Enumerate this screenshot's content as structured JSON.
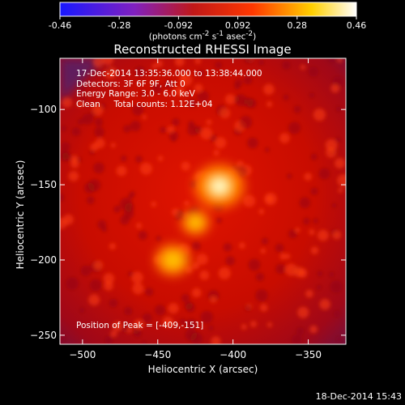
{
  "colorbar": {
    "ticks": [
      "-0.46",
      "-0.28",
      "-0.092",
      "0.092",
      "0.28",
      "0.46"
    ],
    "unit_html": "(photons cm<sup>-2</sup> s<sup>-1</sup> asec<sup>-2</sup>)"
  },
  "title": "Reconstructed RHESSI Image",
  "info": {
    "line1": "17-Dec-2014 13:35:36.000 to 13:38:44.000",
    "line2": "Detectors: 3F 6F 9F, Att 0",
    "line3": "Energy Range: 3.0 - 6.0 keV",
    "line4": "Clean     Total counts: 1.12E+04",
    "peak": "Position of Peak = [-409,-151]"
  },
  "footer_timestamp": "18-Dec-2014 15:43",
  "chart_data": {
    "type": "heatmap",
    "title": "Reconstructed RHESSI Image",
    "xlabel": "Heliocentric X (arcsec)",
    "ylabel": "Heliocentric Y (arcsec)",
    "xlim": [
      -515,
      -325
    ],
    "ylim": [
      -256,
      -66
    ],
    "x_ticks": [
      -500,
      -450,
      -400,
      -350
    ],
    "y_ticks": [
      -100,
      -150,
      -200,
      -250
    ],
    "colorbar_range": [
      -0.46,
      0.46
    ],
    "colormap": "blue-purple-red-yellow-white",
    "sources": [
      {
        "x": -409,
        "y": -151,
        "peak": 0.46
      },
      {
        "x": -440,
        "y": -200,
        "peak": 0.3
      },
      {
        "x": -425,
        "y": -175,
        "peak": 0.22
      }
    ],
    "peak_position": [
      -409,
      -151
    ]
  }
}
